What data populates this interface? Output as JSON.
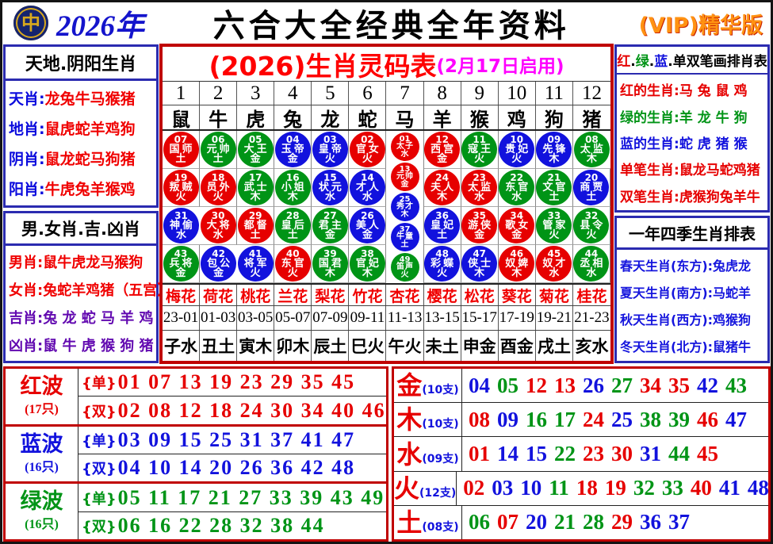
{
  "header": {
    "year": "2026年",
    "title": "六合大全经典全年资料",
    "vip": "(VIP)精华版",
    "logo_char": "中"
  },
  "left_top": {
    "title": "天地.阴阳生肖",
    "rows": [
      {
        "label": "天肖:",
        "value": "龙兔牛马猴猪"
      },
      {
        "label": "地肖:",
        "value": "鼠虎蛇羊鸡狗"
      },
      {
        "label": "阴肖:",
        "value": "鼠龙蛇马狗猪"
      },
      {
        "label": "阳肖:",
        "value": "牛虎兔羊猴鸡"
      }
    ]
  },
  "left_bottom": {
    "title": "男.女肖.吉.凶肖",
    "rows": [
      {
        "label": "男肖:",
        "value": "鼠牛虎龙马猴狗",
        "color": "#f00000"
      },
      {
        "label": "女肖:",
        "value": "兔蛇羊鸡猪（五宫）",
        "color": "#f00000"
      },
      {
        "label": "吉肖:",
        "value": "兔 龙 蛇 马 羊 鸡",
        "color": "#6209b0"
      },
      {
        "label": "凶肖:",
        "value": "鼠 牛 虎 猴 狗 猪",
        "color": "#6209b0"
      }
    ]
  },
  "main_table": {
    "title": "(2026)生肖灵码表",
    "subtitle": "(2月17日启用)",
    "numbers": [
      "1",
      "2",
      "3",
      "4",
      "5",
      "6",
      "7",
      "8",
      "9",
      "10",
      "11",
      "12"
    ],
    "zodiacs": [
      "鼠",
      "牛",
      "虎",
      "兔",
      "龙",
      "蛇",
      "马",
      "羊",
      "猴",
      "鸡",
      "狗",
      "猪"
    ],
    "ball_rows": [
      [
        {
          "n": "07",
          "t": "国师",
          "e": "土",
          "c": "red"
        },
        {
          "n": "06",
          "t": "元帅",
          "e": "土",
          "c": "green"
        },
        {
          "n": "05",
          "t": "大王",
          "e": "金",
          "c": "green"
        },
        {
          "n": "04",
          "t": "玉帝",
          "e": "金",
          "c": "blue"
        },
        {
          "n": "03",
          "t": "皇帝",
          "e": "火",
          "c": "blue"
        },
        {
          "n": "02",
          "t": "官女",
          "e": "火",
          "c": "red"
        },
        {
          "n": "12",
          "t": "西宫",
          "e": "金",
          "c": "red"
        },
        {
          "n": "11",
          "t": "寇王",
          "e": "火",
          "c": "green"
        },
        {
          "n": "10",
          "t": "贵妃",
          "e": "火",
          "c": "blue"
        },
        {
          "n": "09",
          "t": "先锋",
          "e": "木",
          "c": "blue"
        },
        {
          "n": "08",
          "t": "太监",
          "e": "木",
          "c": "green"
        }
      ],
      [
        {
          "n": "19",
          "t": "叛贼",
          "e": "火",
          "c": "red"
        },
        {
          "n": "18",
          "t": "员外",
          "e": "火",
          "c": "red"
        },
        {
          "n": "17",
          "t": "武士",
          "e": "木",
          "c": "green"
        },
        {
          "n": "16",
          "t": "小姐",
          "e": "木",
          "c": "green"
        },
        {
          "n": "15",
          "t": "状元",
          "e": "水",
          "c": "blue"
        },
        {
          "n": "14",
          "t": "才人",
          "e": "水",
          "c": "blue"
        },
        {
          "n": "24",
          "t": "夫人",
          "e": "木",
          "c": "red"
        },
        {
          "n": "23",
          "t": "太监",
          "e": "水",
          "c": "red"
        },
        {
          "n": "22",
          "t": "东官",
          "e": "水",
          "c": "green"
        },
        {
          "n": "21",
          "t": "文官",
          "e": "土",
          "c": "green"
        },
        {
          "n": "20",
          "t": "商贾",
          "e": "土",
          "c": "blue"
        }
      ],
      [
        {
          "n": "31",
          "t": "神偷",
          "e": "水",
          "c": "blue"
        },
        {
          "n": "30",
          "t": "大将",
          "e": "水",
          "c": "red"
        },
        {
          "n": "29",
          "t": "都督",
          "e": "土",
          "c": "red"
        },
        {
          "n": "28",
          "t": "皇后",
          "e": "土",
          "c": "green"
        },
        {
          "n": "27",
          "t": "君主",
          "e": "金",
          "c": "green"
        },
        {
          "n": "26",
          "t": "美人",
          "e": "金",
          "c": "blue"
        },
        {
          "n": "36",
          "t": "皇妃",
          "e": "土",
          "c": "blue"
        },
        {
          "n": "35",
          "t": "游侠",
          "e": "金",
          "c": "red"
        },
        {
          "n": "34",
          "t": "歌女",
          "e": "金",
          "c": "red"
        },
        {
          "n": "33",
          "t": "管家",
          "e": "火",
          "c": "green"
        },
        {
          "n": "32",
          "t": "县令",
          "e": "火",
          "c": "green"
        }
      ],
      [
        {
          "n": "43",
          "t": "兵将",
          "e": "金",
          "c": "green"
        },
        {
          "n": "42",
          "t": "包公",
          "e": "金",
          "c": "blue"
        },
        {
          "n": "41",
          "t": "将军",
          "e": "火",
          "c": "blue"
        },
        {
          "n": "40",
          "t": "东官",
          "e": "火",
          "c": "red"
        },
        {
          "n": "39",
          "t": "国君",
          "e": "木",
          "c": "green"
        },
        {
          "n": "38",
          "t": "官妃",
          "e": "木",
          "c": "green"
        },
        {
          "n": "48",
          "t": "彩蝶",
          "e": "火",
          "c": "blue"
        },
        {
          "n": "47",
          "t": "侠士",
          "e": "木",
          "c": "blue"
        },
        {
          "n": "46",
          "t": "奴婢",
          "e": "木",
          "c": "red"
        },
        {
          "n": "45",
          "t": "奴才",
          "e": "水",
          "c": "red"
        },
        {
          "n": "44",
          "t": "丞相",
          "e": "水",
          "c": "green"
        }
      ]
    ],
    "center_balls": [
      {
        "n": "01",
        "t": "太子",
        "e": "水",
        "c": "red"
      },
      {
        "n": "13",
        "t": "元帅",
        "e": "金",
        "c": "red"
      },
      {
        "n": "25",
        "t": "秀才",
        "e": "木",
        "c": "blue"
      },
      {
        "n": "37",
        "t": "牛童",
        "e": "土",
        "c": "blue"
      },
      {
        "n": "49",
        "t": "笛声",
        "e": "火",
        "c": "green"
      }
    ],
    "flowers": [
      "梅花",
      "荷花",
      "桃花",
      "兰花",
      "梨花",
      "竹花",
      "杏花",
      "樱花",
      "松花",
      "葵花",
      "菊花",
      "桂花"
    ],
    "times": [
      "23-01",
      "01-03",
      "03-05",
      "05-07",
      "07-09",
      "09-11",
      "11-13",
      "13-15",
      "15-17",
      "17-19",
      "19-21",
      "21-23"
    ],
    "branches": [
      "子水",
      "丑土",
      "寅木",
      "卯木",
      "辰土",
      "巳火",
      "午火",
      "未土",
      "申金",
      "酉金",
      "戌土",
      "亥水"
    ]
  },
  "right_top": {
    "title_segments": [
      {
        "t": "红",
        "c": "#e60000"
      },
      {
        "t": ".",
        "c": "#000000"
      },
      {
        "t": "绿",
        "c": "#009416"
      },
      {
        "t": ".",
        "c": "#000000"
      },
      {
        "t": "蓝",
        "c": "#1212dd"
      },
      {
        "t": ".",
        "c": "#000000"
      },
      {
        "t": "单双笔画排肖表",
        "c": "#000000"
      }
    ],
    "rows": [
      {
        "label": "红的生肖:",
        "value": "马 兔 鼠 鸡",
        "color": "#e60000"
      },
      {
        "label": "绿的生肖:",
        "value": "羊 龙 牛 狗",
        "color": "#009416"
      },
      {
        "label": "蓝的生肖:",
        "value": "蛇 虎 猪 猴",
        "color": "#1212dd"
      },
      {
        "label": "单笔生肖:",
        "value": "鼠龙马蛇鸡猪",
        "color": "#e60000"
      },
      {
        "label": "双笔生肖:",
        "value": "虎猴狗兔羊牛",
        "color": "#e60000"
      }
    ]
  },
  "right_bottom": {
    "title": "一年四季生肖排表",
    "color": "#1515dd",
    "rows": [
      {
        "label": "春天生肖(东方):",
        "value": "兔虎龙"
      },
      {
        "label": "夏天生肖(南方):",
        "value": "马蛇羊"
      },
      {
        "label": "秋天生肖(西方):",
        "value": "鸡猴狗"
      },
      {
        "label": "冬天生肖(北方):",
        "value": "鼠猪牛"
      }
    ]
  },
  "wave_prefix_odd": "{单}",
  "wave_prefix_even": "{双}",
  "waves": [
    {
      "name": "红波",
      "count": "(17只)",
      "color": "#e60000",
      "odd": "01 07 13 19 23 29 35 45",
      "even": "02 08 12 18 24 30 34 40 46"
    },
    {
      "name": "蓝波",
      "count": "(16只)",
      "color": "#1212dd",
      "odd": "03 09 15 25 31 37 41 47",
      "even": "04 10 14 20 26 36 42 48"
    },
    {
      "name": "绿波",
      "count": "(16只)",
      "color": "#009416",
      "odd": "05 11 17 21 27 33 39 43 49",
      "even": "06 16 22 28 32 38 44"
    }
  ],
  "elements": [
    {
      "name": "金",
      "count": "(10支)",
      "nums": [
        {
          "v": "04",
          "c": "blue"
        },
        {
          "v": "05",
          "c": "green"
        },
        {
          "v": "12",
          "c": "red"
        },
        {
          "v": "13",
          "c": "red"
        },
        {
          "v": "26",
          "c": "blue"
        },
        {
          "v": "27",
          "c": "green"
        },
        {
          "v": "34",
          "c": "red"
        },
        {
          "v": "35",
          "c": "red"
        },
        {
          "v": "42",
          "c": "blue"
        },
        {
          "v": "43",
          "c": "green"
        }
      ]
    },
    {
      "name": "木",
      "count": "(10支)",
      "nums": [
        {
          "v": "08",
          "c": "red"
        },
        {
          "v": "09",
          "c": "blue"
        },
        {
          "v": "16",
          "c": "green"
        },
        {
          "v": "17",
          "c": "green"
        },
        {
          "v": "24",
          "c": "red"
        },
        {
          "v": "25",
          "c": "blue"
        },
        {
          "v": "38",
          "c": "green"
        },
        {
          "v": "39",
          "c": "green"
        },
        {
          "v": "46",
          "c": "red"
        },
        {
          "v": "47",
          "c": "blue"
        }
      ]
    },
    {
      "name": "水",
      "count": "(09支)",
      "nums": [
        {
          "v": "01",
          "c": "red"
        },
        {
          "v": "14",
          "c": "blue"
        },
        {
          "v": "15",
          "c": "blue"
        },
        {
          "v": "22",
          "c": "green"
        },
        {
          "v": "23",
          "c": "red"
        },
        {
          "v": "30",
          "c": "red"
        },
        {
          "v": "31",
          "c": "blue"
        },
        {
          "v": "44",
          "c": "green"
        },
        {
          "v": "45",
          "c": "red"
        }
      ]
    },
    {
      "name": "火",
      "count": "(12支)",
      "nums": [
        {
          "v": "02",
          "c": "red"
        },
        {
          "v": "03",
          "c": "blue"
        },
        {
          "v": "10",
          "c": "blue"
        },
        {
          "v": "11",
          "c": "green"
        },
        {
          "v": "18",
          "c": "red"
        },
        {
          "v": "19",
          "c": "red"
        },
        {
          "v": "32",
          "c": "green"
        },
        {
          "v": "33",
          "c": "green"
        },
        {
          "v": "40",
          "c": "red"
        },
        {
          "v": "41",
          "c": "blue"
        },
        {
          "v": "48",
          "c": "blue"
        },
        {
          "v": "49",
          "c": "green"
        }
      ]
    },
    {
      "name": "土",
      "count": "(08支)",
      "nums": [
        {
          "v": "06",
          "c": "green"
        },
        {
          "v": "07",
          "c": "red"
        },
        {
          "v": "20",
          "c": "blue"
        },
        {
          "v": "21",
          "c": "green"
        },
        {
          "v": "28",
          "c": "green"
        },
        {
          "v": "29",
          "c": "red"
        },
        {
          "v": "36",
          "c": "blue"
        },
        {
          "v": "37",
          "c": "blue"
        }
      ]
    }
  ],
  "colors": {
    "red": "#e60000",
    "green": "#009416",
    "blue": "#1212dd",
    "magenta": "#ff00ff",
    "navy_border": "#2b2bb0",
    "red_border": "#c00000",
    "purple": "#6209b0"
  }
}
